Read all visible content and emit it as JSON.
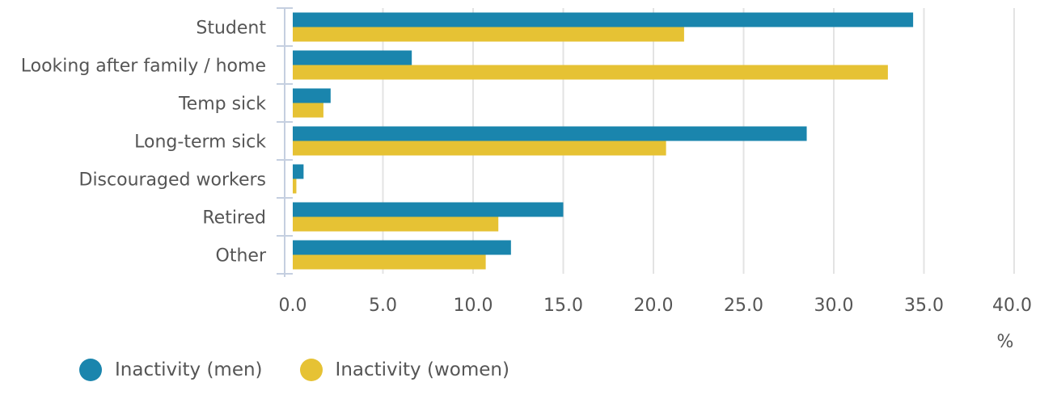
{
  "chart_data": {
    "type": "bar",
    "orientation": "horizontal",
    "categories": [
      "Student",
      "Looking after family / home",
      "Temp sick",
      "Long-term sick",
      "Discouraged workers",
      "Retired",
      "Other"
    ],
    "series": [
      {
        "name": "Inactivity (men)",
        "color": "#1a85ad",
        "values": [
          34.4,
          6.6,
          2.1,
          28.5,
          0.6,
          15.0,
          12.1
        ]
      },
      {
        "name": "Inactivity (women)",
        "color": "#e6c234",
        "values": [
          21.7,
          33.0,
          1.7,
          20.7,
          0.2,
          11.4,
          10.7
        ]
      }
    ],
    "xlim": [
      0,
      40
    ],
    "xticks": [
      "0.0",
      "5.0",
      "10.0",
      "15.0",
      "20.0",
      "25.0",
      "30.0",
      "35.0",
      "40.0"
    ],
    "xunit": "%",
    "grid": true,
    "legend_position": "bottom-left"
  }
}
